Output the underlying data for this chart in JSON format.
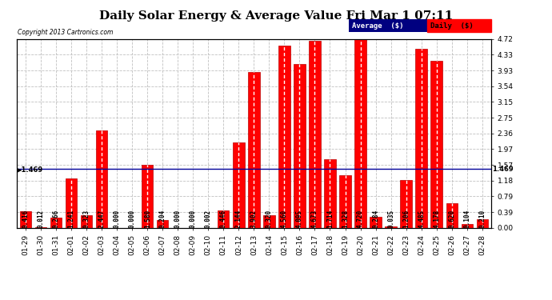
{
  "title": "Daily Solar Energy & Average Value Fri Mar 1 07:11",
  "copyright": "Copyright 2013 Cartronics.com",
  "categories": [
    "01-29",
    "01-30",
    "01-31",
    "02-01",
    "02-02",
    "02-03",
    "02-04",
    "02-05",
    "02-06",
    "02-07",
    "02-08",
    "02-09",
    "02-10",
    "02-11",
    "02-12",
    "02-13",
    "02-14",
    "02-15",
    "02-16",
    "02-17",
    "02-18",
    "02-19",
    "02-20",
    "02-21",
    "02-22",
    "02-23",
    "02-24",
    "02-25",
    "02-26",
    "02-27",
    "02-28"
  ],
  "values": [
    0.416,
    0.012,
    0.266,
    1.241,
    0.323,
    2.447,
    0.0,
    0.0,
    1.58,
    0.204,
    0.0,
    0.0,
    0.002,
    0.446,
    2.144,
    3.902,
    0.32,
    4.56,
    4.095,
    4.673,
    1.714,
    1.328,
    4.72,
    0.284,
    0.035,
    1.206,
    4.485,
    4.178,
    0.62,
    0.104,
    0.21
  ],
  "average_line": 1.469,
  "ylim": [
    0.0,
    4.72
  ],
  "yticks": [
    0.0,
    0.39,
    0.79,
    1.18,
    1.57,
    1.97,
    2.36,
    2.75,
    3.15,
    3.54,
    3.93,
    4.33,
    4.72
  ],
  "bar_color": "#FF0000",
  "bar_edge_color": "#BB0000",
  "average_line_color": "#000099",
  "legend_avg_bg": "#000080",
  "legend_avg_text": "Average  ($)",
  "legend_daily_bg": "#FF0000",
  "legend_daily_text": "Daily  ($)",
  "background_color": "#FFFFFF",
  "plot_bg_color": "#FFFFFF",
  "grid_color": "#C0C0C0",
  "title_fontsize": 11,
  "tick_fontsize": 6.5,
  "value_fontsize": 5.5,
  "avg_label": "1.469"
}
